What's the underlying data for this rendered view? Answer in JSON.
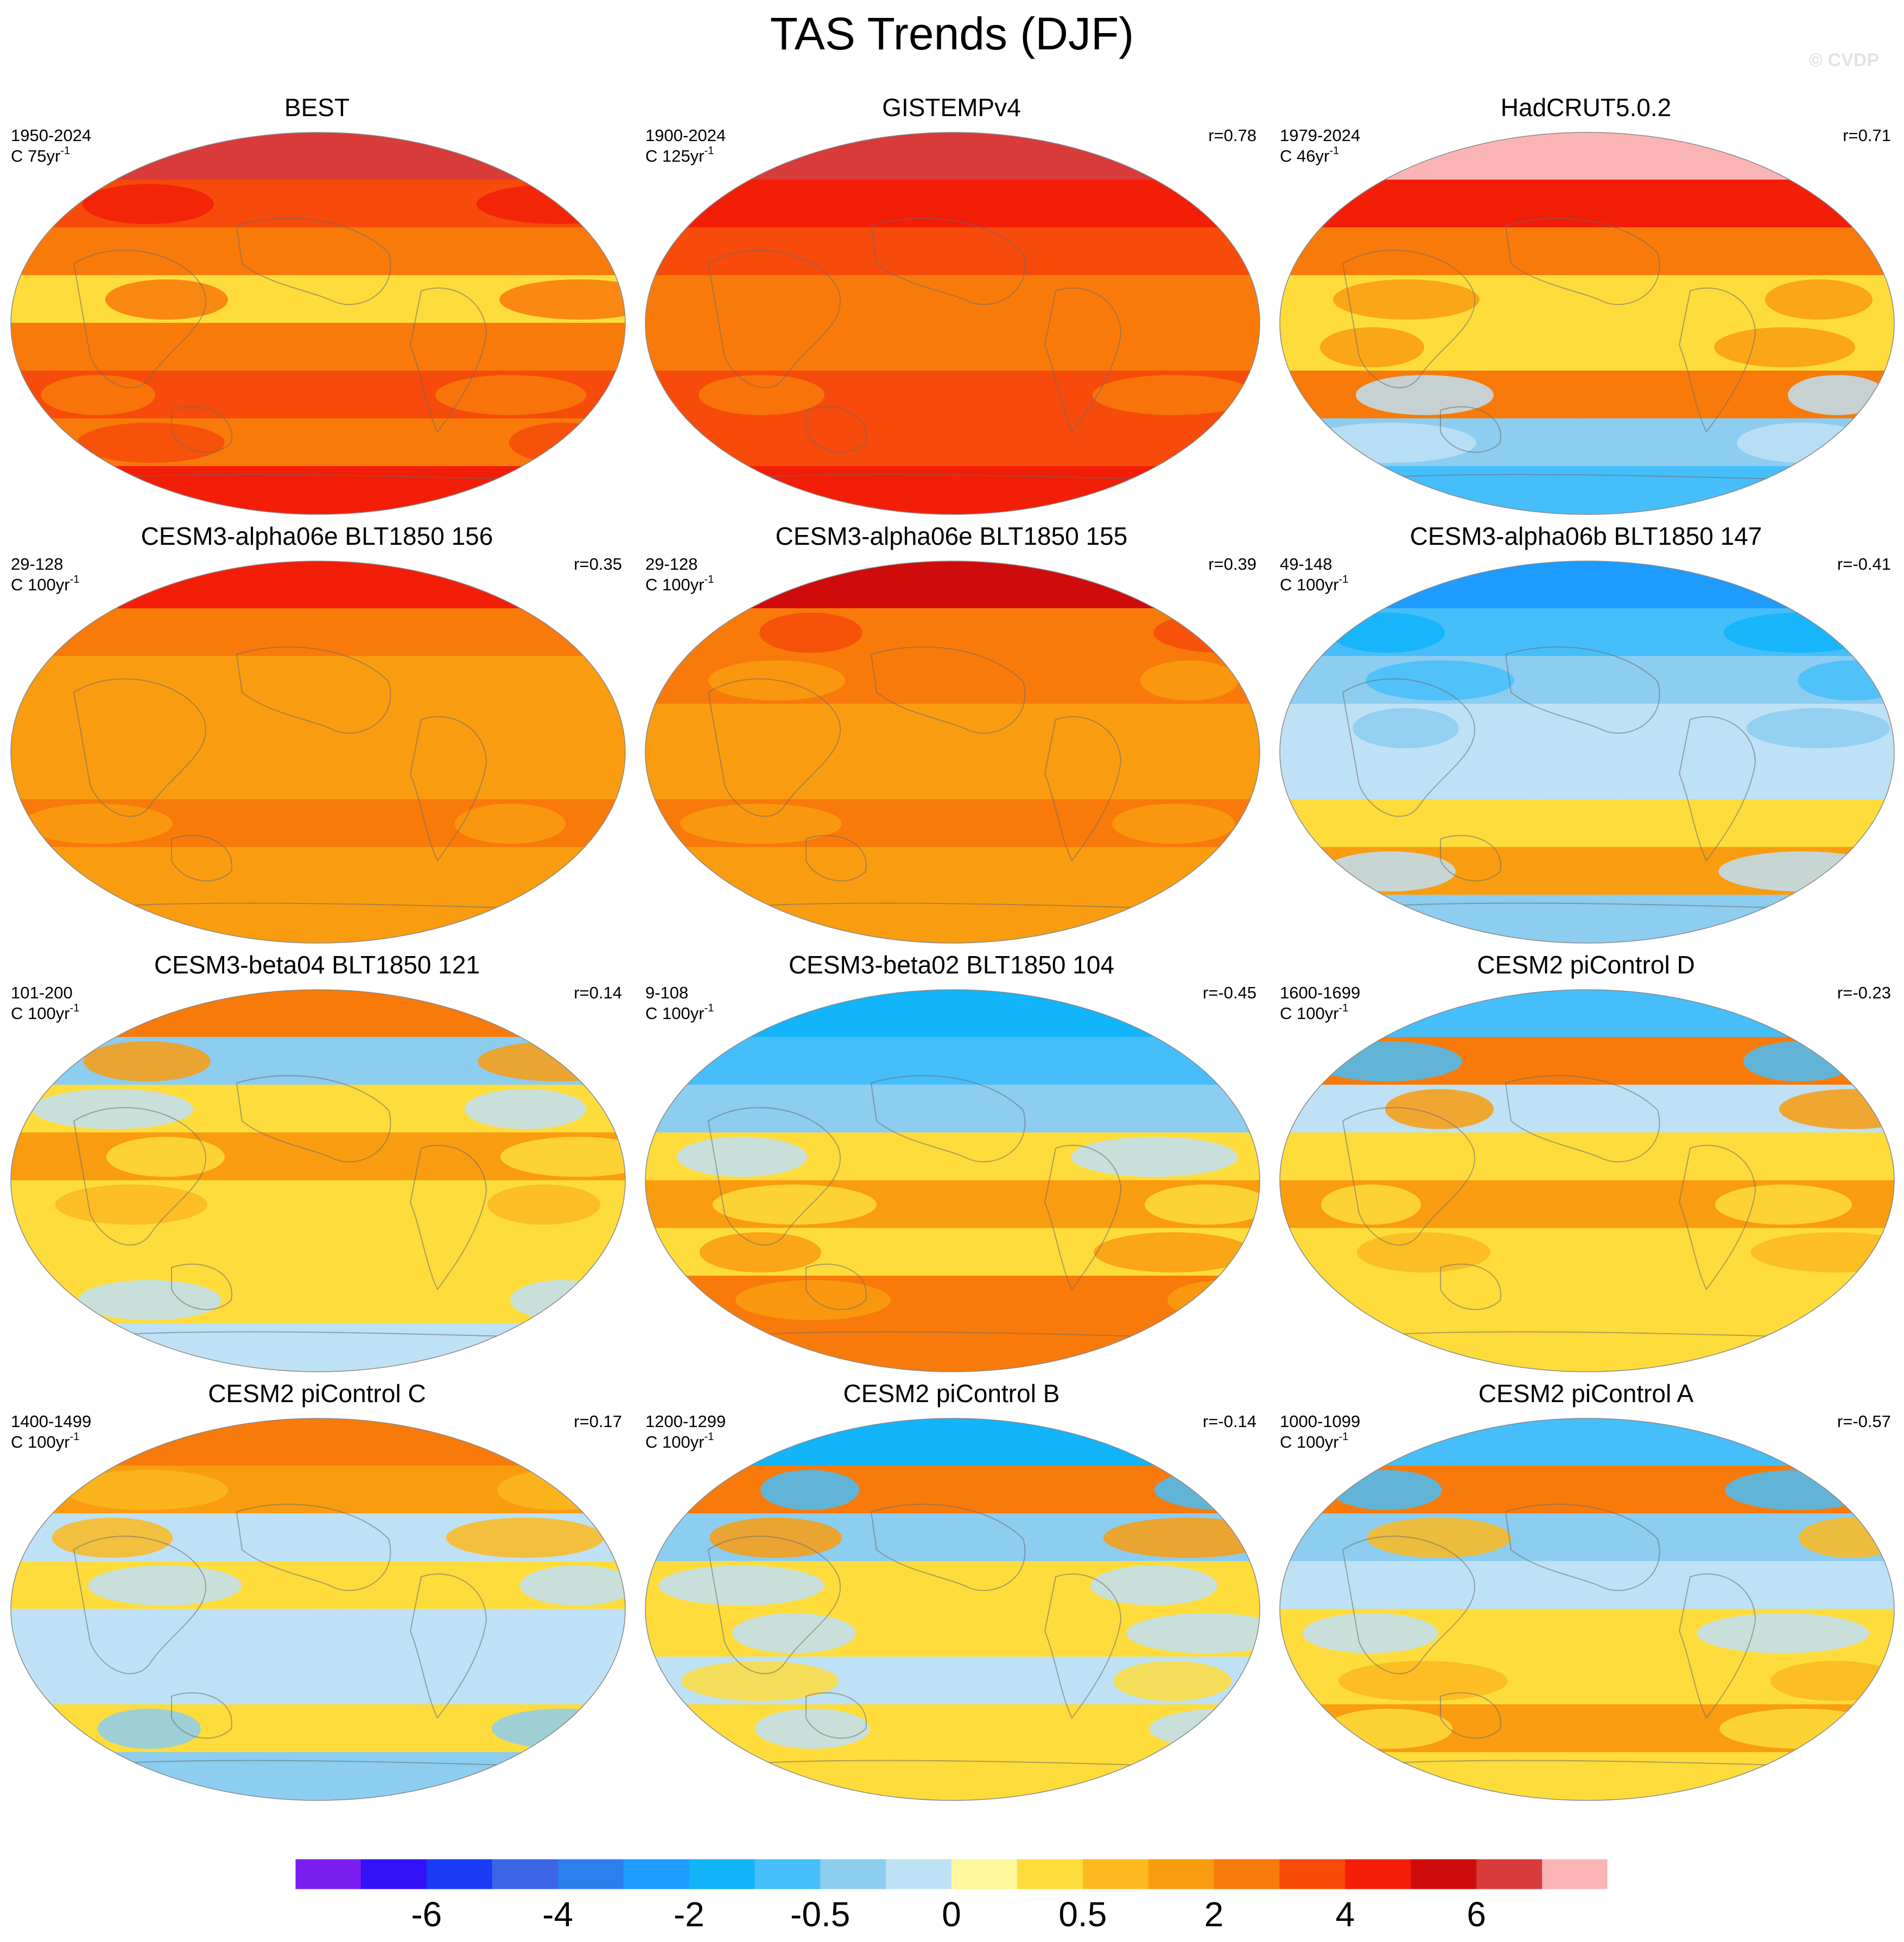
{
  "title": "TAS Trends (DJF)",
  "watermark": "© CVDP",
  "chart_data": {
    "type": "heatmap",
    "projection": "global map panels, 4 rows x 3 columns",
    "variable": "TAS trends, DJF season",
    "panels": [
      {
        "title": "BEST",
        "period": "1950-2024",
        "scale": "C 75yr",
        "scale_exp": "-1",
        "corr": "",
        "field": [
          5,
          2,
          1,
          0,
          1,
          2,
          1,
          3
        ]
      },
      {
        "title": "GISTEMPv4",
        "period": "1900-2024",
        "scale": "C 125yr",
        "scale_exp": "-1",
        "corr": "r=0.78",
        "field": [
          5,
          3,
          2,
          1,
          1,
          2,
          2,
          3
        ]
      },
      {
        "title": "HadCRUT5.0.2",
        "period": "1979-2024",
        "scale": "C 46yr",
        "scale_exp": "-1",
        "corr": "r=0.71",
        "field": [
          6,
          3,
          1,
          0,
          0,
          1,
          -1,
          -2
        ]
      },
      {
        "title": "CESM3-alpha06e BLT1850 156",
        "period": "29-128",
        "scale": "C 100yr",
        "scale_exp": "-1",
        "corr": "r=0.35",
        "field": [
          3,
          1,
          0.5,
          0.5,
          0.5,
          1,
          0.5,
          0.5
        ]
      },
      {
        "title": "CESM3-alpha06e BLT1850 155",
        "period": "29-128",
        "scale": "C 100yr",
        "scale_exp": "-1",
        "corr": "r=0.39",
        "field": [
          4,
          1,
          1,
          0.5,
          0.5,
          1,
          0.5,
          0.5
        ]
      },
      {
        "title": "CESM3-alpha06b BLT1850 147",
        "period": "49-148",
        "scale": "C 100yr",
        "scale_exp": "-1",
        "corr": "r=-0.41",
        "field": [
          -4,
          -2,
          -1,
          -0.5,
          -0.5,
          0,
          0.5,
          -1
        ]
      },
      {
        "title": "CESM3-beta04 BLT1850 121",
        "period": "101-200",
        "scale": "C 100yr",
        "scale_exp": "-1",
        "corr": "r=0.14",
        "field": [
          1,
          -1,
          0,
          0.5,
          0,
          0,
          0,
          -0.5
        ]
      },
      {
        "title": "CESM3-beta02 BLT1850 104",
        "period": "9-108",
        "scale": "C 100yr",
        "scale_exp": "-1",
        "corr": "r=-0.45",
        "field": [
          -3,
          -2,
          -1,
          0,
          0.5,
          0,
          1,
          1
        ]
      },
      {
        "title": "CESM2 piControl D",
        "period": "1600-1699",
        "scale": "C 100yr",
        "scale_exp": "-1",
        "corr": "r=-0.23",
        "field": [
          -2,
          1,
          -0.5,
          0,
          0.5,
          0,
          0,
          0
        ]
      },
      {
        "title": "CESM2 piControl C",
        "period": "1400-1499",
        "scale": "C 100yr",
        "scale_exp": "-1",
        "corr": "r=0.17",
        "field": [
          1,
          0.5,
          -0.5,
          0,
          -0.5,
          -0.5,
          0,
          -1
        ]
      },
      {
        "title": "CESM2 piControl B",
        "period": "1200-1299",
        "scale": "C 100yr",
        "scale_exp": "-1",
        "corr": "r=-0.14",
        "field": [
          -3,
          1,
          -1,
          0,
          0,
          -0.5,
          0,
          0
        ]
      },
      {
        "title": "CESM2 piControl A",
        "period": "1000-1099",
        "scale": "C 100yr",
        "scale_exp": "-1",
        "corr": "r=-0.57",
        "field": [
          -2,
          1,
          -1,
          -0.5,
          0,
          0,
          0.5,
          0
        ]
      }
    ],
    "colorbar": {
      "label_values": [
        "-6",
        "-4",
        "-2",
        "-0.5",
        "0",
        "0.5",
        "2",
        "4",
        "6"
      ],
      "colors": [
        "#7a1ef0",
        "#3312f8",
        "#1a3cf5",
        "#3c64e6",
        "#2d7ff0",
        "#1e9bff",
        "#12b4fa",
        "#46befa",
        "#8ccdf0",
        "#bee1f5",
        "#fff79b",
        "#fedc3c",
        "#fcb91e",
        "#f99c0f",
        "#f87a0a",
        "#f64b0a",
        "#f21e08",
        "#cf0c0c",
        "#d93a3a",
        "#fbb4b4"
      ]
    }
  }
}
